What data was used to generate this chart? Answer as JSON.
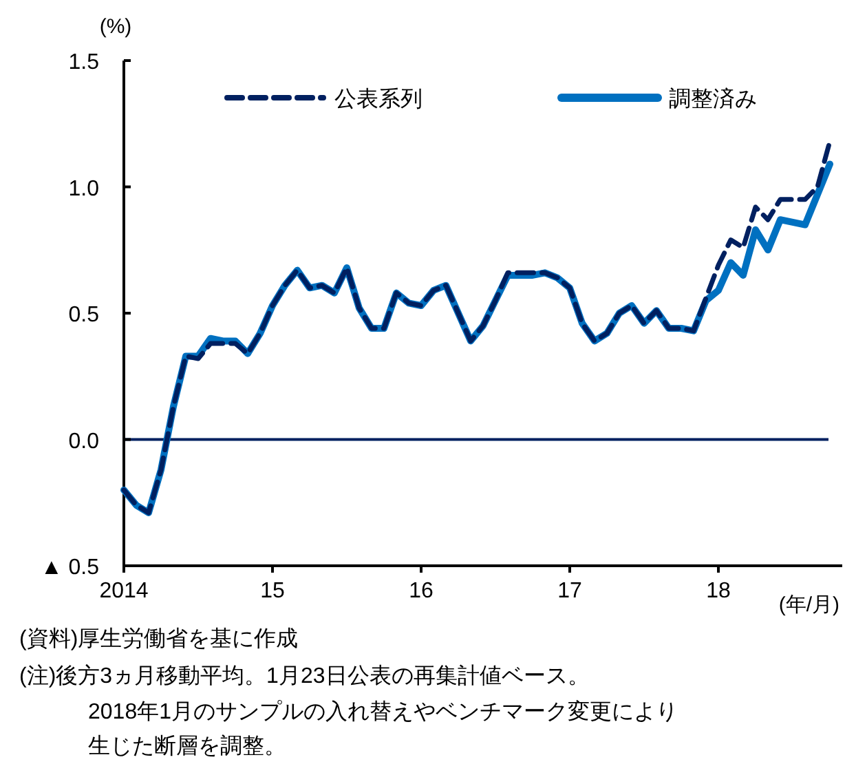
{
  "chart_data": {
    "type": "line",
    "ylabel": "(%)",
    "xlabel": "(年/月)",
    "x": [
      "2014-01",
      "2014-02",
      "2014-03",
      "2014-04",
      "2014-05",
      "2014-06",
      "2014-07",
      "2014-08",
      "2014-09",
      "2014-10",
      "2014-11",
      "2014-12",
      "2015-01",
      "2015-02",
      "2015-03",
      "2015-04",
      "2015-05",
      "2015-06",
      "2015-07",
      "2015-08",
      "2015-09",
      "2015-10",
      "2015-11",
      "2015-12",
      "2016-01",
      "2016-02",
      "2016-03",
      "2016-04",
      "2016-05",
      "2016-06",
      "2016-07",
      "2016-08",
      "2016-09",
      "2016-10",
      "2016-11",
      "2016-12",
      "2017-01",
      "2017-02",
      "2017-03",
      "2017-04",
      "2017-05",
      "2017-06",
      "2017-07",
      "2017-08",
      "2017-09",
      "2017-10",
      "2017-11",
      "2017-12",
      "2018-01",
      "2018-02",
      "2018-03",
      "2018-04",
      "2018-05",
      "2018-06",
      "2018-07",
      "2018-08",
      "2018-09",
      "2018-10"
    ],
    "series": [
      {
        "name": "公表系列",
        "color": "#002060",
        "line_style": "dashed",
        "values": [
          -0.2,
          -0.26,
          -0.29,
          -0.12,
          0.13,
          0.33,
          0.32,
          0.38,
          0.38,
          0.38,
          0.34,
          0.42,
          0.53,
          0.61,
          0.67,
          0.6,
          0.61,
          0.58,
          0.68,
          0.52,
          0.44,
          0.44,
          0.58,
          0.54,
          0.53,
          0.59,
          0.61,
          0.5,
          0.39,
          0.45,
          0.55,
          0.66,
          0.66,
          0.66,
          0.66,
          0.64,
          0.6,
          0.46,
          0.39,
          0.42,
          0.5,
          0.53,
          0.46,
          0.51,
          0.44,
          0.44,
          0.43,
          0.56,
          0.69,
          0.79,
          0.76,
          0.92,
          0.87,
          0.95,
          0.95,
          0.95,
          1.0,
          1.18
        ]
      },
      {
        "name": "調整済み",
        "color": "#0070c0",
        "line_style": "solid",
        "values": [
          -0.2,
          -0.26,
          -0.29,
          -0.12,
          0.13,
          0.33,
          0.33,
          0.4,
          0.39,
          0.39,
          0.34,
          0.42,
          0.53,
          0.61,
          0.67,
          0.6,
          0.61,
          0.58,
          0.68,
          0.52,
          0.44,
          0.44,
          0.58,
          0.54,
          0.53,
          0.59,
          0.61,
          0.5,
          0.39,
          0.45,
          0.55,
          0.65,
          0.65,
          0.65,
          0.66,
          0.64,
          0.6,
          0.46,
          0.39,
          0.42,
          0.5,
          0.53,
          0.46,
          0.51,
          0.44,
          0.44,
          0.43,
          0.55,
          0.59,
          0.7,
          0.65,
          0.83,
          0.75,
          0.87,
          0.86,
          0.85,
          0.97,
          1.09
        ]
      }
    ],
    "xlim": [
      "2014-01",
      "2018-11"
    ],
    "xticks": [
      {
        "value": "2014-01",
        "label": "2014"
      },
      {
        "value": "2015-01",
        "label": "15"
      },
      {
        "value": "2016-01",
        "label": "16"
      },
      {
        "value": "2017-01",
        "label": "17"
      },
      {
        "value": "2018-01",
        "label": "18"
      }
    ],
    "ylim": [
      -0.5,
      1.5
    ],
    "yticks": [
      {
        "value": -0.5,
        "label": "▲ 0.5"
      },
      {
        "value": 0,
        "label": "0.0"
      },
      {
        "value": 0.5,
        "label": "0.5"
      },
      {
        "value": 1,
        "label": "1.0"
      },
      {
        "value": 1.5,
        "label": "1.5"
      }
    ],
    "ref_lines": [
      {
        "axis": "y",
        "value": 0,
        "color": "#002060"
      }
    ],
    "legend": "top",
    "grid": false,
    "annotations": [
      "(資料)厚生労働省を基に作成",
      "(注)後方3ヵ月移動平均。1月23日公表の再集計値ベース。",
      "2018年1月のサンプルの入れ替えやベンチマーク変更により",
      "生じた断層を調整。"
    ]
  }
}
